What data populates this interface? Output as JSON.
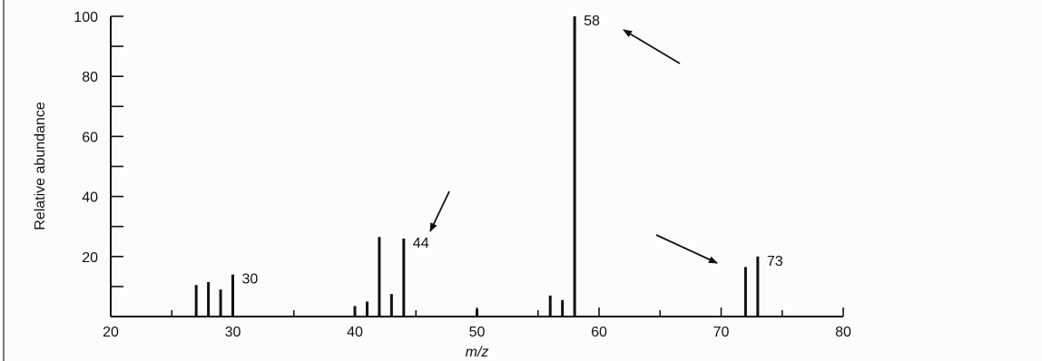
{
  "chart_data": {
    "type": "bar",
    "xlabel": "m/z",
    "ylabel": "Relative abundance",
    "xlim": [
      20,
      80
    ],
    "ylim": [
      0,
      100
    ],
    "x_ticks": [
      "20",
      "30",
      "40",
      "50",
      "60",
      "70",
      "80"
    ],
    "y_ticks": [
      "20",
      "40",
      "60",
      "80",
      "100"
    ],
    "peaks": [
      {
        "x": 27,
        "y": 10.5
      },
      {
        "x": 28,
        "y": 11.5
      },
      {
        "x": 29,
        "y": 9
      },
      {
        "x": 30,
        "y": 14
      },
      {
        "x": 40,
        "y": 3.5
      },
      {
        "x": 41,
        "y": 5
      },
      {
        "x": 42,
        "y": 26.5
      },
      {
        "x": 43,
        "y": 7.5
      },
      {
        "x": 44,
        "y": 26
      },
      {
        "x": 50,
        "y": 2.5
      },
      {
        "x": 56,
        "y": 7
      },
      {
        "x": 57,
        "y": 5.5
      },
      {
        "x": 58,
        "y": 100
      },
      {
        "x": 72,
        "y": 16.5
      },
      {
        "x": 73,
        "y": 20
      }
    ],
    "annotations": [
      {
        "text": "30",
        "x": 30,
        "y": 14
      },
      {
        "text": "44",
        "x": 44,
        "y": 26
      },
      {
        "text": "58",
        "x": 58,
        "y": 100
      },
      {
        "text": "73",
        "x": 73,
        "y": 20
      }
    ],
    "arrows": [
      {
        "points_to": "44"
      },
      {
        "points_to": "58"
      },
      {
        "points_to": "73"
      }
    ],
    "grid": false
  }
}
